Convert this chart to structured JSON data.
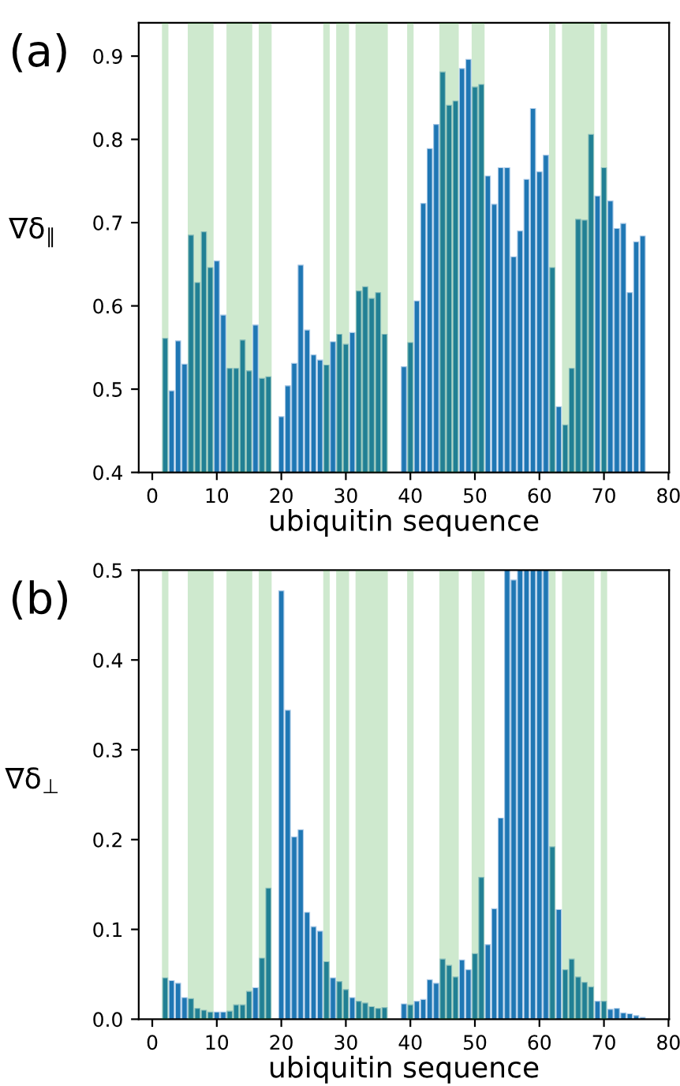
{
  "chart_data": [
    {
      "type": "bar",
      "title": "(a)",
      "xlabel": "ubiquitin sequence",
      "ylabel": "∇δ$_{∥}$",
      "x": [
        2,
        3,
        4,
        5,
        6,
        7,
        8,
        9,
        10,
        11,
        12,
        13,
        14,
        15,
        16,
        17,
        18,
        20,
        21,
        22,
        23,
        24,
        25,
        26,
        27,
        28,
        29,
        30,
        31,
        32,
        33,
        34,
        35,
        36,
        39,
        40,
        41,
        42,
        43,
        44,
        45,
        46,
        47,
        48,
        49,
        50,
        51,
        52,
        53,
        54,
        55,
        56,
        57,
        58,
        59,
        60,
        61,
        62,
        63,
        64,
        65,
        66,
        67,
        68,
        69,
        70,
        71,
        72,
        73,
        74,
        75,
        76
      ],
      "series": [
        {
          "color": "#1f77b4",
          "values": [
            0.561,
            0.498,
            0.558,
            0.53,
            0.685,
            0.628,
            0.689,
            0.646,
            0.654,
            0.589,
            0.525,
            0.525,
            0.559,
            0.522,
            0.577,
            0.513,
            0.515,
            0.467,
            0.504,
            0.531,
            0.649,
            0.571,
            0.541,
            0.535,
            0.529,
            0.557,
            0.566,
            0.554,
            0.568,
            0.618,
            0.623,
            0.609,
            0.616,
            0.566,
            0.527,
            0.556,
            0.606,
            0.723,
            0.789,
            0.818,
            0.881,
            0.841,
            0.846,
            0.885,
            0.896,
            0.863,
            0.866,
            0.756,
            0.722,
            0.766,
            0.766,
            0.659,
            0.69,
            0.752,
            0.837,
            0.761,
            0.781,
            0.646,
            0.479,
            0.457,
            0.525,
            0.704,
            0.703,
            0.806,
            0.732,
            0.766,
            0.726,
            0.693,
            0.699,
            0.616,
            0.677,
            0.684
          ]
        }
      ],
      "xlim": [
        -2.1,
        80.1
      ],
      "xticks": [
        0,
        10,
        20,
        30,
        40,
        50,
        60,
        70,
        80
      ],
      "ylim": [
        0.4,
        0.94
      ],
      "yticks": [
        0.4,
        0.5,
        0.6,
        0.7,
        0.8,
        0.9
      ],
      "bands": [
        {
          "axis": "x",
          "from": 1.5,
          "to": 2.5,
          "color": "#2ca02c"
        },
        {
          "axis": "x",
          "from": 5.5,
          "to": 9.5,
          "color": "#2ca02c"
        },
        {
          "axis": "x",
          "from": 11.5,
          "to": 15.5,
          "color": "#2ca02c"
        },
        {
          "axis": "x",
          "from": 16.5,
          "to": 18.5,
          "color": "#2ca02c"
        },
        {
          "axis": "x",
          "from": 26.5,
          "to": 27.5,
          "color": "#2ca02c"
        },
        {
          "axis": "x",
          "from": 28.5,
          "to": 30.5,
          "color": "#2ca02c"
        },
        {
          "axis": "x",
          "from": 31.5,
          "to": 36.5,
          "color": "#2ca02c"
        },
        {
          "axis": "x",
          "from": 39.5,
          "to": 40.5,
          "color": "#2ca02c"
        },
        {
          "axis": "x",
          "from": 44.5,
          "to": 47.5,
          "color": "#2ca02c"
        },
        {
          "axis": "x",
          "from": 49.5,
          "to": 51.5,
          "color": "#2ca02c"
        },
        {
          "axis": "x",
          "from": 61.5,
          "to": 62.5,
          "color": "#2ca02c"
        },
        {
          "axis": "x",
          "from": 63.5,
          "to": 68.5,
          "color": "#2ca02c"
        },
        {
          "axis": "x",
          "from": 69.5,
          "to": 70.5,
          "color": "#2ca02c"
        }
      ],
      "grid": false,
      "legend": false
    },
    {
      "type": "bar",
      "title": "(b)",
      "xlabel": "ubiquitin sequence",
      "ylabel": "∇δ$_{⊥}$",
      "x": [
        2,
        3,
        4,
        5,
        6,
        7,
        8,
        9,
        10,
        11,
        12,
        13,
        14,
        15,
        16,
        17,
        18,
        20,
        21,
        22,
        23,
        24,
        25,
        26,
        27,
        28,
        29,
        30,
        31,
        32,
        33,
        34,
        35,
        36,
        39,
        40,
        41,
        42,
        43,
        44,
        45,
        46,
        47,
        48,
        49,
        50,
        51,
        52,
        53,
        54,
        55,
        56,
        57,
        58,
        59,
        60,
        61,
        62,
        63,
        64,
        65,
        66,
        67,
        68,
        69,
        70,
        71,
        72,
        73,
        74,
        75,
        76
      ],
      "series": [
        {
          "color": "#1f77b4",
          "values": [
            0.046,
            0.043,
            0.04,
            0.024,
            0.023,
            0.012,
            0.01,
            0.008,
            0.008,
            0.008,
            0.009,
            0.016,
            0.016,
            0.031,
            0.035,
            0.068,
            0.146,
            0.477,
            0.344,
            0.203,
            0.211,
            0.119,
            0.103,
            0.098,
            0.064,
            0.046,
            0.042,
            0.033,
            0.024,
            0.02,
            0.018,
            0.014,
            0.012,
            0.013,
            0.017,
            0.016,
            0.02,
            0.022,
            0.044,
            0.04,
            0.067,
            0.06,
            0.047,
            0.066,
            0.055,
            0.073,
            0.158,
            0.083,
            0.123,
            0.224,
            0.5,
            0.489,
            0.5,
            0.5,
            0.5,
            0.5,
            0.5,
            0.192,
            0.122,
            0.055,
            0.067,
            0.047,
            0.041,
            0.036,
            0.02,
            0.02,
            0.011,
            0.012,
            0.007,
            0.006,
            0.004,
            0.002
          ]
        }
      ],
      "xlim": [
        -2.1,
        80.1
      ],
      "xticks": [
        0,
        10,
        20,
        30,
        40,
        50,
        60,
        70,
        80
      ],
      "ylim": [
        0,
        0.5
      ],
      "yticks": [
        {
          "value": 0,
          "label": "0.0"
        },
        0.1,
        0.2,
        0.3,
        0.4,
        0.5
      ],
      "bands": [
        {
          "axis": "x",
          "from": 1.5,
          "to": 2.5,
          "color": "#2ca02c"
        },
        {
          "axis": "x",
          "from": 5.5,
          "to": 9.5,
          "color": "#2ca02c"
        },
        {
          "axis": "x",
          "from": 11.5,
          "to": 15.5,
          "color": "#2ca02c"
        },
        {
          "axis": "x",
          "from": 16.5,
          "to": 18.5,
          "color": "#2ca02c"
        },
        {
          "axis": "x",
          "from": 26.5,
          "to": 27.5,
          "color": "#2ca02c"
        },
        {
          "axis": "x",
          "from": 28.5,
          "to": 30.5,
          "color": "#2ca02c"
        },
        {
          "axis": "x",
          "from": 31.5,
          "to": 36.5,
          "color": "#2ca02c"
        },
        {
          "axis": "x",
          "from": 39.5,
          "to": 40.5,
          "color": "#2ca02c"
        },
        {
          "axis": "x",
          "from": 44.5,
          "to": 47.5,
          "color": "#2ca02c"
        },
        {
          "axis": "x",
          "from": 49.5,
          "to": 51.5,
          "color": "#2ca02c"
        },
        {
          "axis": "x",
          "from": 61.5,
          "to": 62.5,
          "color": "#2ca02c"
        },
        {
          "axis": "x",
          "from": 63.5,
          "to": 68.5,
          "color": "#2ca02c"
        },
        {
          "axis": "x",
          "from": 69.5,
          "to": 70.5,
          "color": "#2ca02c"
        }
      ],
      "grid": false,
      "legend": false
    }
  ]
}
